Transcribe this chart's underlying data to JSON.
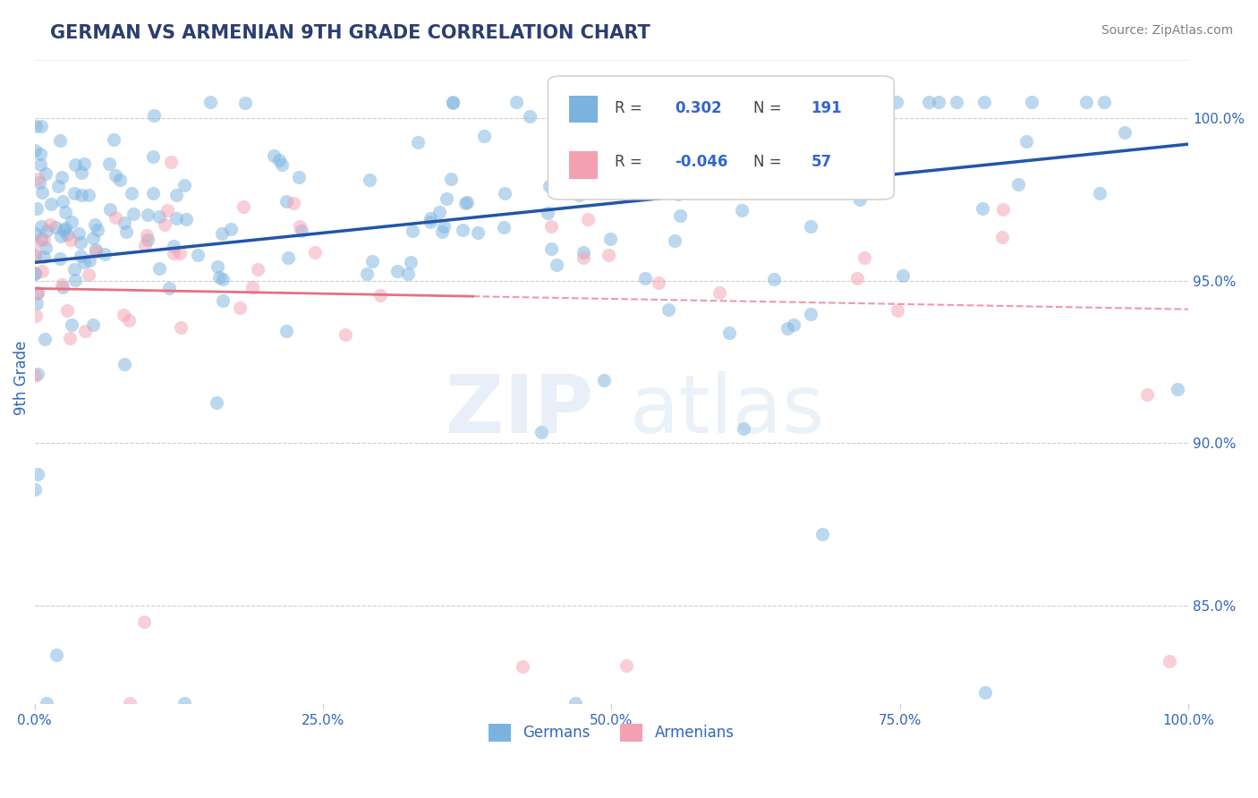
{
  "title": "GERMAN VS ARMENIAN 9TH GRADE CORRELATION CHART",
  "source_text": "Source: ZipAtlas.com",
  "ylabel": "9th Grade",
  "right_yticks": [
    0.85,
    0.9,
    0.95,
    1.0
  ],
  "right_yticklabels": [
    "85.0%",
    "90.0%",
    "95.0%",
    "100.0%"
  ],
  "xlim": [
    0.0,
    1.0
  ],
  "ylim": [
    0.82,
    1.02
  ],
  "legend_german_R": "0.302",
  "legend_german_N": "191",
  "legend_armenian_R": "-0.046",
  "legend_armenian_N": "57",
  "german_color": "#7ab3e0",
  "armenian_color": "#f4a0b0",
  "german_line_color": "#2255aa",
  "armenian_line_color": "#e87080",
  "background_color": "#ffffff",
  "grid_color": "#cccccc",
  "title_color": "#2c3e70",
  "axis_label_color": "#3366bb",
  "dot_size": 120,
  "dot_alpha": 0.5
}
